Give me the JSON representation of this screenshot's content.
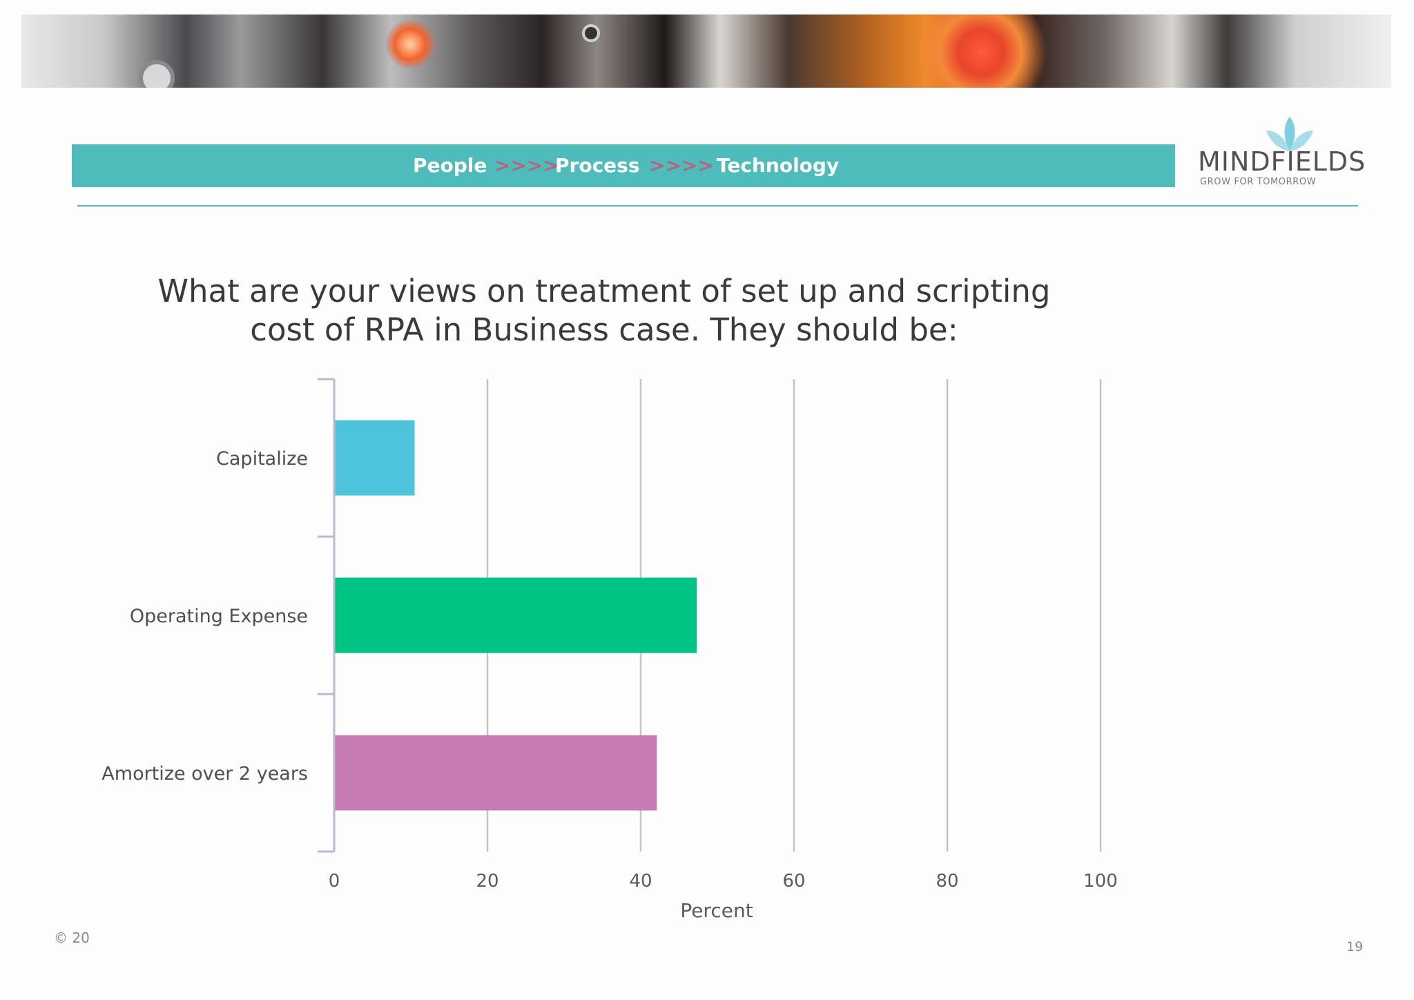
{
  "header": {
    "ribbon": {
      "word1": "People",
      "arrow1": ">>>>",
      "word2": "Process",
      "arrow2": ">>>>",
      "word3": "Technology"
    },
    "logo": {
      "name": "MINDFIELDS",
      "tagline": "GROW FOR TOMORROW"
    }
  },
  "chart_data": {
    "type": "bar",
    "orientation": "horizontal",
    "title": "What are your views on treatment of set up and scripting cost of RPA in Business case. They should be:",
    "title_lines": [
      "What are your views on treatment of set up and scripting",
      "cost of RPA in Business case. They should be:"
    ],
    "categories": [
      "Capitalize",
      "Operating Expense",
      "Amortize over 2 years"
    ],
    "values": [
      10.5,
      47.3,
      42.1
    ],
    "colors": [
      "#4ec3dc",
      "#00c484",
      "#c67bb3"
    ],
    "xlabel": "Percent",
    "ylabel": "",
    "xlim": [
      0,
      100
    ],
    "xticks": [
      0,
      20,
      40,
      60,
      80,
      100
    ],
    "grid": true,
    "legend": "none"
  },
  "footer": {
    "copyright": "© 20",
    "page_number": "19"
  }
}
